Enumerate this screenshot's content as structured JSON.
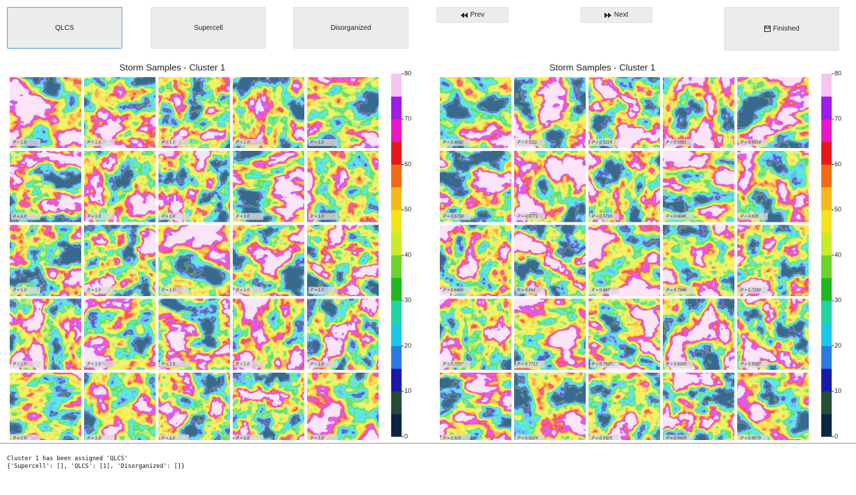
{
  "buttons": {
    "qlcs": "QLCS",
    "supercell": "Supercell",
    "disorganized": "Disorganized",
    "prev": "Prev",
    "next": "Next",
    "finished": "Finished"
  },
  "panels": [
    {
      "title": "Storm Samples - Cluster 1",
      "samples": [
        "P = 1.0",
        "P = 1.0",
        "P = 1.0",
        "P = 1.0",
        "P = 1.0",
        "P = 1.0",
        "P = 1.0",
        "P = 1.0",
        "P = 1.0",
        "P = 1.0",
        "P = 1.0",
        "P = 1.0",
        "P = 1.0",
        "P = 1.0",
        "P = 1.0",
        "P = 1.0",
        "P = 1.0",
        "P = 1.0",
        "P = 1.0",
        "P = 1.0",
        "P = 1.0",
        "P = 1.0",
        "P = 1.0",
        "P = 1.0",
        "P = 1.0"
      ],
      "clim": [
        0,
        80
      ],
      "colorbar_ticks": [
        0,
        10,
        20,
        30,
        40,
        50,
        60,
        70,
        80
      ]
    },
    {
      "title": "Storm Samples - Cluster 1",
      "samples": [
        "P = 0.4082",
        "P = 0.5111",
        "P = 0.5219",
        "P = 0.5581",
        "P = 0.5614",
        "P = 0.5758",
        "P = 0.5771",
        "P = 0.5793",
        "P = 0.6045",
        "P = 0.635",
        "P = 0.6496",
        "P = 0.661",
        "P = 0.667",
        "P = 0.7246",
        "P = 0.7249",
        "P = 0.7557",
        "P = 0.7712",
        "P = 0.7937",
        "P = 0.8345",
        "P = 0.9087",
        "P = 0.915",
        "P = 0.9224",
        "P = 0.9325",
        "P = 0.9420",
        "P = 0.9579"
      ],
      "clim": [
        0,
        80
      ],
      "colorbar_ticks": [
        0,
        10,
        20,
        30,
        40,
        50,
        60,
        70,
        80
      ]
    }
  ],
  "output": {
    "lines": [
      "Cluster 1 has been assigned 'QLCS'",
      "{'Supercell': [], 'QLCS': [1], 'Disorganized': []}"
    ]
  }
}
